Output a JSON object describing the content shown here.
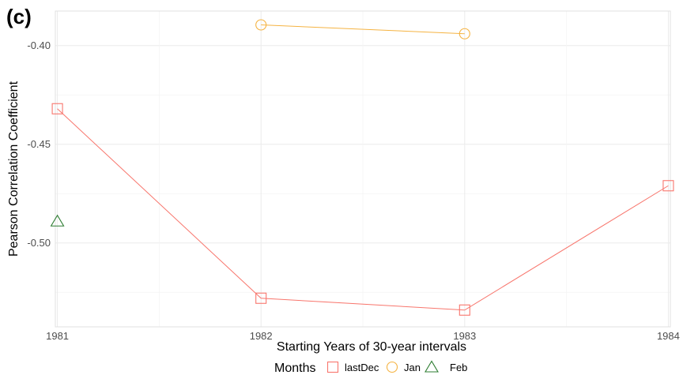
{
  "chart_data": {
    "type": "line",
    "panel_label": "(c)",
    "title": "",
    "xlabel": "Starting Years of 30-year intervals",
    "ylabel": "Pearson Correlation Coefficient",
    "x_ticks": [
      "1981",
      "1982",
      "1983",
      "1984"
    ],
    "y_ticks": [
      {
        "value": -0.4,
        "label": "-0.40"
      },
      {
        "value": -0.45,
        "label": "-0.45"
      },
      {
        "value": -0.5,
        "label": "-0.50"
      }
    ],
    "xlim": [
      1980.99,
      1984.01
    ],
    "ylim": [
      -0.5425,
      -0.3825
    ],
    "grid": true,
    "legend": {
      "title": "Months",
      "position": "bottom"
    },
    "series": [
      {
        "name": "lastDec",
        "color": "#F8766D",
        "marker": "square",
        "points": [
          {
            "x": 1981,
            "y": -0.432
          },
          {
            "x": 1982,
            "y": -0.528
          },
          {
            "x": 1983,
            "y": -0.534
          },
          {
            "x": 1984,
            "y": -0.471
          }
        ]
      },
      {
        "name": "Jan",
        "color": "#F5B342",
        "marker": "circle",
        "points": [
          {
            "x": 1982,
            "y": -0.3895
          },
          {
            "x": 1983,
            "y": -0.394
          }
        ]
      },
      {
        "name": "Feb",
        "color": "#2E7D32",
        "marker": "triangle",
        "points": [
          {
            "x": 1981,
            "y": -0.489
          }
        ]
      }
    ]
  }
}
